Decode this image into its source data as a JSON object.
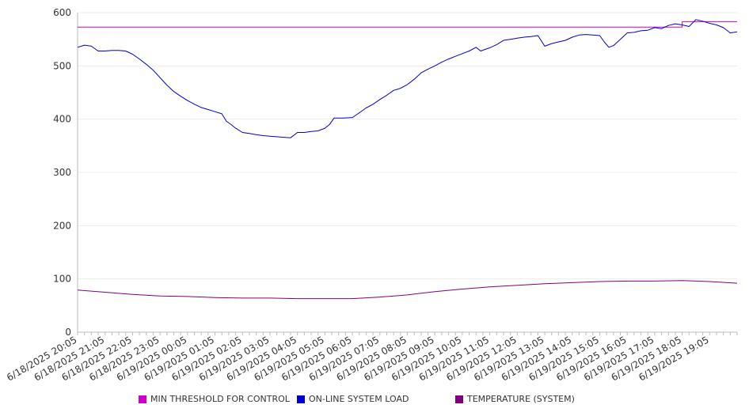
{
  "chart_data": {
    "type": "line",
    "title": "",
    "xlabel": "",
    "ylabel": "",
    "ylim": [
      0,
      600
    ],
    "yticks": [
      0,
      100,
      200,
      300,
      400,
      500,
      600
    ],
    "grid": true,
    "legend_position": "bottom",
    "x_range": [
      "6/18/2025 20:05",
      "6/19/2025 20:05"
    ],
    "xticks": [
      "6/18/2025 20:05",
      "6/18/2025 21:05",
      "6/18/2025 22:05",
      "6/18/2025 23:05",
      "6/19/2025 00:05",
      "6/19/2025 01:05",
      "6/19/2025 02:05",
      "6/19/2025 03:05",
      "6/19/2025 04:05",
      "6/19/2025 05:05",
      "6/19/2025 06:05",
      "6/19/2025 07:05",
      "6/19/2025 08:05",
      "6/19/2025 09:05",
      "6/19/2025 10:05",
      "6/19/2025 11:05",
      "6/19/2025 12:05",
      "6/19/2025 13:05",
      "6/19/2025 14:05",
      "6/19/2025 15:05",
      "6/19/2025 16:05",
      "6/19/2025 17:05",
      "6/19/2025 18:05",
      "6/19/2025 19:05"
    ],
    "series": [
      {
        "name": "MIN THRESHOLD FOR CONTROL",
        "color": "#cc00cc",
        "points": [
          [
            "6/18/2025 20:05",
            573
          ],
          [
            "6/19/2025 18:05",
            573
          ],
          [
            "6/19/2025 18:05",
            583
          ],
          [
            "6/19/2025 20:05",
            583
          ]
        ]
      },
      {
        "name": "ON-LINE SYSTEM LOAD",
        "color": "#0000cc",
        "points": [
          [
            "6/18/2025 20:05",
            535
          ],
          [
            "6/18/2025 20:20",
            539
          ],
          [
            "6/18/2025 20:35",
            537
          ],
          [
            "6/18/2025 20:50",
            528
          ],
          [
            "6/18/2025 21:05",
            528
          ],
          [
            "6/18/2025 21:20",
            529
          ],
          [
            "6/18/2025 21:35",
            529
          ],
          [
            "6/18/2025 21:50",
            528
          ],
          [
            "6/18/2025 22:05",
            522
          ],
          [
            "6/18/2025 22:20",
            513
          ],
          [
            "6/18/2025 22:35",
            503
          ],
          [
            "6/18/2025 22:50",
            492
          ],
          [
            "6/18/2025 23:05",
            478
          ],
          [
            "6/18/2025 23:20",
            464
          ],
          [
            "6/18/2025 23:35",
            452
          ],
          [
            "6/18/2025 23:50",
            443
          ],
          [
            "6/19/2025 00:05",
            435
          ],
          [
            "6/19/2025 00:20",
            428
          ],
          [
            "6/19/2025 00:35",
            422
          ],
          [
            "6/19/2025 00:50",
            418
          ],
          [
            "6/19/2025 01:05",
            414
          ],
          [
            "6/19/2025 01:20",
            410
          ],
          [
            "6/19/2025 01:30",
            396
          ],
          [
            "6/19/2025 01:40",
            390
          ],
          [
            "6/19/2025 01:50",
            383
          ],
          [
            "6/19/2025 02:05",
            375
          ],
          [
            "6/19/2025 02:20",
            373
          ],
          [
            "6/19/2025 02:35",
            371
          ],
          [
            "6/19/2025 02:50",
            369
          ],
          [
            "6/19/2025 03:05",
            368
          ],
          [
            "6/19/2025 03:20",
            367
          ],
          [
            "6/19/2025 03:35",
            366
          ],
          [
            "6/19/2025 03:50",
            365
          ],
          [
            "6/19/2025 04:05",
            375
          ],
          [
            "6/19/2025 04:20",
            375
          ],
          [
            "6/19/2025 04:35",
            377
          ],
          [
            "6/19/2025 04:50",
            378
          ],
          [
            "6/19/2025 05:05",
            383
          ],
          [
            "6/19/2025 05:15",
            390
          ],
          [
            "6/19/2025 05:25",
            402
          ],
          [
            "6/19/2025 05:45",
            402
          ],
          [
            "6/19/2025 06:05",
            403
          ],
          [
            "6/19/2025 06:20",
            412
          ],
          [
            "6/19/2025 06:35",
            421
          ],
          [
            "6/19/2025 06:50",
            428
          ],
          [
            "6/19/2025 07:05",
            437
          ],
          [
            "6/19/2025 07:20",
            445
          ],
          [
            "6/19/2025 07:35",
            454
          ],
          [
            "6/19/2025 07:50",
            458
          ],
          [
            "6/19/2025 08:05",
            465
          ],
          [
            "6/19/2025 08:20",
            475
          ],
          [
            "6/19/2025 08:35",
            487
          ],
          [
            "6/19/2025 08:50",
            494
          ],
          [
            "6/19/2025 09:05",
            500
          ],
          [
            "6/19/2025 09:20",
            507
          ],
          [
            "6/19/2025 09:35",
            513
          ],
          [
            "6/19/2025 09:50",
            518
          ],
          [
            "6/19/2025 10:05",
            523
          ],
          [
            "6/19/2025 10:20",
            528
          ],
          [
            "6/19/2025 10:35",
            535
          ],
          [
            "6/19/2025 10:45",
            528
          ],
          [
            "6/19/2025 11:05",
            534
          ],
          [
            "6/19/2025 11:20",
            540
          ],
          [
            "6/19/2025 11:35",
            548
          ],
          [
            "6/19/2025 11:50",
            550
          ],
          [
            "6/19/2025 12:05",
            552
          ],
          [
            "6/19/2025 12:20",
            554
          ],
          [
            "6/19/2025 12:35",
            555
          ],
          [
            "6/19/2025 12:50",
            557
          ],
          [
            "6/19/2025 13:05",
            537
          ],
          [
            "6/19/2025 13:20",
            542
          ],
          [
            "6/19/2025 13:35",
            545
          ],
          [
            "6/19/2025 13:50",
            548
          ],
          [
            "6/19/2025 14:05",
            554
          ],
          [
            "6/19/2025 14:20",
            558
          ],
          [
            "6/19/2025 14:35",
            559
          ],
          [
            "6/19/2025 14:50",
            558
          ],
          [
            "6/19/2025 15:05",
            557
          ],
          [
            "6/19/2025 15:15",
            545
          ],
          [
            "6/19/2025 15:25",
            535
          ],
          [
            "6/19/2025 15:35",
            538
          ],
          [
            "6/19/2025 15:50",
            550
          ],
          [
            "6/19/2025 16:05",
            562
          ],
          [
            "6/19/2025 16:20",
            563
          ],
          [
            "6/19/2025 16:35",
            566
          ],
          [
            "6/19/2025 16:50",
            567
          ],
          [
            "6/19/2025 17:05",
            572
          ],
          [
            "6/19/2025 17:20",
            570
          ],
          [
            "6/19/2025 17:35",
            576
          ],
          [
            "6/19/2025 17:50",
            579
          ],
          [
            "6/19/2025 18:05",
            577
          ],
          [
            "6/19/2025 18:20",
            574
          ],
          [
            "6/19/2025 18:35",
            587
          ],
          [
            "6/19/2025 18:50",
            584
          ],
          [
            "6/19/2025 19:05",
            580
          ],
          [
            "6/19/2025 19:20",
            577
          ],
          [
            "6/19/2025 19:35",
            572
          ],
          [
            "6/19/2025 19:50",
            562
          ],
          [
            "6/19/2025 20:05",
            564
          ]
        ]
      },
      {
        "name": "TEMPERATURE (SYSTEM)",
        "color": "#800080",
        "points": [
          [
            "6/18/2025 20:05",
            79
          ],
          [
            "6/18/2025 21:05",
            75
          ],
          [
            "6/18/2025 22:05",
            71
          ],
          [
            "6/18/2025 23:05",
            68
          ],
          [
            "6/19/2025 00:05",
            67
          ],
          [
            "6/19/2025 01:05",
            65
          ],
          [
            "6/19/2025 02:05",
            64
          ],
          [
            "6/19/2025 03:05",
            64
          ],
          [
            "6/19/2025 04:05",
            63
          ],
          [
            "6/19/2025 05:05",
            63
          ],
          [
            "6/19/2025 06:05",
            63
          ],
          [
            "6/19/2025 07:05",
            66
          ],
          [
            "6/19/2025 08:05",
            70
          ],
          [
            "6/19/2025 09:05",
            76
          ],
          [
            "6/19/2025 10:05",
            81
          ],
          [
            "6/19/2025 11:05",
            85
          ],
          [
            "6/19/2025 12:05",
            88
          ],
          [
            "6/19/2025 13:05",
            91
          ],
          [
            "6/19/2025 14:05",
            93
          ],
          [
            "6/19/2025 15:05",
            95
          ],
          [
            "6/19/2025 16:05",
            96
          ],
          [
            "6/19/2025 17:05",
            96
          ],
          [
            "6/19/2025 18:05",
            97
          ],
          [
            "6/19/2025 19:05",
            95
          ],
          [
            "6/19/2025 20:05",
            92
          ]
        ]
      }
    ]
  }
}
